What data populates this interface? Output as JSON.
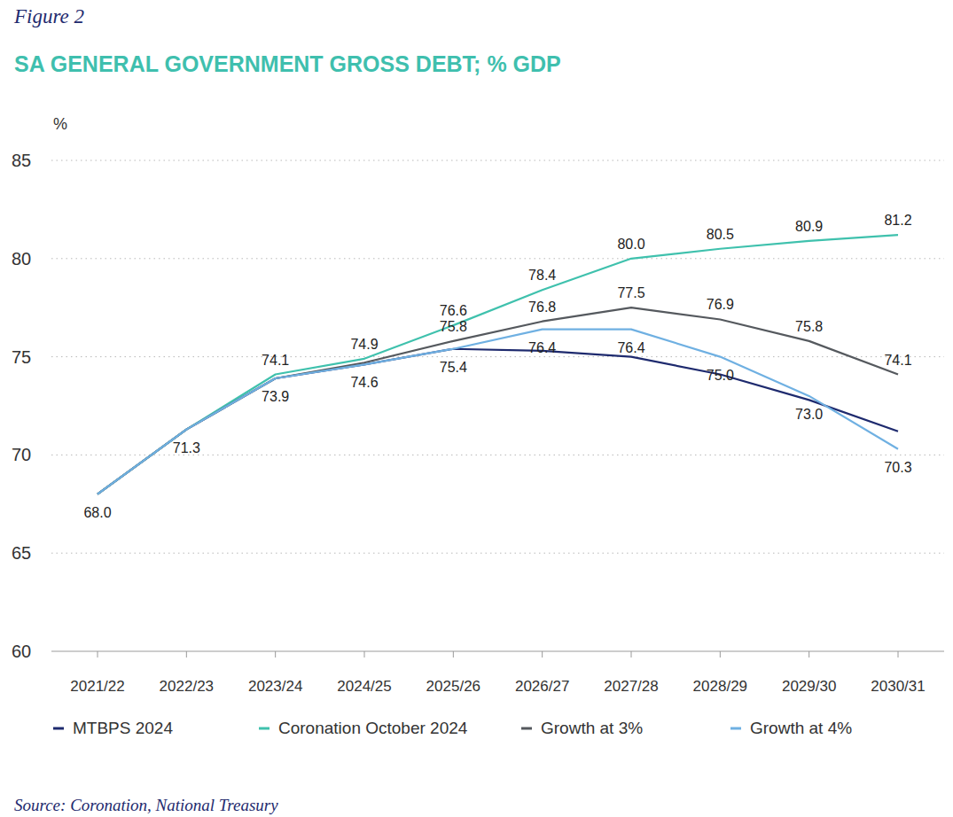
{
  "chart_data": {
    "type": "line",
    "figure_label": "Figure 2",
    "title": "SA GENERAL GOVERNMENT GROSS DEBT; % GDP",
    "ylabel": "%",
    "source": "Source: Coronation, National Treasury",
    "categories": [
      "2021/22",
      "2022/23",
      "2023/24",
      "2024/25",
      "2025/26",
      "2026/27",
      "2027/28",
      "2028/29",
      "2029/30",
      "2030/31"
    ],
    "series": [
      {
        "name": "MTBPS 2024",
        "color": "#1e2a6e",
        "values": [
          68.0,
          71.3,
          73.9,
          74.6,
          75.4,
          75.3,
          75.0,
          74.1,
          72.8,
          71.2
        ],
        "value_labels": [
          "68.0",
          "71.3",
          "73.9",
          "74.6",
          "75.4",
          null,
          null,
          null,
          null,
          null
        ]
      },
      {
        "name": "Coronation October 2024",
        "color": "#3fc1ad",
        "values": [
          68.0,
          71.3,
          74.1,
          74.9,
          76.6,
          78.4,
          80.0,
          80.5,
          80.9,
          81.2
        ],
        "value_labels": [
          null,
          null,
          "74.1",
          "74.9",
          "76.6",
          "78.4",
          "80.0",
          "80.5",
          "80.9",
          "81.2"
        ]
      },
      {
        "name": "Growth at 3%",
        "color": "#55595e",
        "values": [
          68.0,
          71.3,
          73.9,
          74.7,
          75.8,
          76.8,
          77.5,
          76.9,
          75.8,
          74.1
        ],
        "value_labels": [
          null,
          null,
          null,
          null,
          "75.8",
          "76.8",
          "77.5",
          "76.9",
          "75.8",
          "74.1"
        ]
      },
      {
        "name": "Growth at 4%",
        "color": "#6fb0e2",
        "values": [
          68.0,
          71.3,
          73.9,
          74.6,
          75.4,
          76.4,
          76.4,
          75.0,
          73.0,
          70.3
        ],
        "value_labels": [
          null,
          null,
          null,
          null,
          null,
          "76.4",
          "76.4",
          "75.0",
          "73.0",
          "70.3"
        ]
      }
    ],
    "ylim": [
      60,
      85
    ],
    "yticks": [
      60,
      65,
      70,
      75,
      80,
      85
    ],
    "grid": true,
    "data_labels": true,
    "legend": "bottom"
  }
}
